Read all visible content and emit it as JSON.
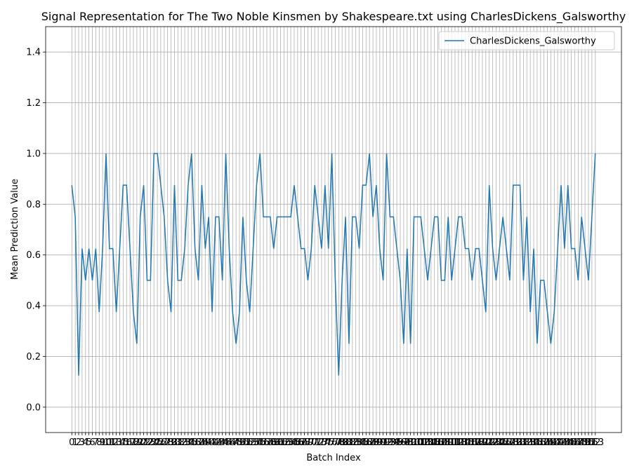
{
  "chart_data": {
    "type": "line",
    "title": "Signal Representation for The Two Noble Kinsmen by Shakespeare.txt using CharlesDickens_Galsworthy",
    "xlabel": "Batch Index",
    "ylabel": "Mean Prediction Value",
    "x": [
      0,
      1,
      2,
      3,
      4,
      5,
      6,
      7,
      8,
      9,
      10,
      11,
      12,
      13,
      14,
      15,
      16,
      17,
      18,
      19,
      20,
      21,
      22,
      23,
      24,
      25,
      26,
      27,
      28,
      29,
      30,
      31,
      32,
      33,
      34,
      35,
      36,
      37,
      38,
      39,
      40,
      41,
      42,
      43,
      44,
      45,
      46,
      47,
      48,
      49,
      50,
      51,
      52,
      53,
      54,
      55,
      56,
      57,
      58,
      59,
      60,
      61,
      62,
      63,
      64,
      65,
      66,
      67,
      68,
      69,
      70,
      71,
      72,
      73,
      74,
      75,
      76,
      77,
      78,
      79,
      80,
      81,
      82,
      83,
      84,
      85,
      86,
      87,
      88,
      89,
      90,
      91,
      92,
      93,
      94,
      95,
      96,
      97,
      98,
      99,
      100,
      101,
      102,
      103,
      104,
      105,
      106,
      107,
      108,
      109,
      110,
      111,
      112,
      113,
      114,
      115,
      116,
      117,
      118,
      119,
      120,
      121,
      122,
      123,
      124,
      125,
      126,
      127,
      128,
      129,
      130,
      131,
      132,
      133,
      134,
      135,
      136,
      137,
      138,
      139,
      140,
      141,
      142,
      143,
      144,
      145,
      146,
      147,
      148,
      149,
      150,
      151,
      152,
      153
    ],
    "series": [
      {
        "name": "CharlesDickens_Galsworthy",
        "color": "#1f77b4",
        "values": [
          0.875,
          0.75,
          0.125,
          0.625,
          0.5,
          0.625,
          0.5,
          0.625,
          0.375,
          0.625,
          1.0,
          0.625,
          0.625,
          0.375,
          0.625,
          0.875,
          0.875,
          0.625,
          0.375,
          0.25,
          0.75,
          0.875,
          0.5,
          0.5,
          1.0,
          1.0,
          0.875,
          0.75,
          0.5,
          0.375,
          0.875,
          0.5,
          0.5,
          0.625,
          0.875,
          1.0,
          0.625,
          0.5,
          0.875,
          0.625,
          0.75,
          0.375,
          0.75,
          0.75,
          0.5,
          1.0,
          0.625,
          0.375,
          0.25,
          0.375,
          0.75,
          0.5,
          0.375,
          0.625,
          0.875,
          1.0,
          0.75,
          0.75,
          0.75,
          0.625,
          0.75,
          0.75,
          0.75,
          0.75,
          0.75,
          0.875,
          0.75,
          0.625,
          0.625,
          0.5,
          0.625,
          0.875,
          0.75,
          0.625,
          0.875,
          0.625,
          1.0,
          0.5,
          0.125,
          0.5,
          0.75,
          0.25,
          0.75,
          0.75,
          0.625,
          0.875,
          0.875,
          1.0,
          0.75,
          0.875,
          0.625,
          0.5,
          1.0,
          0.75,
          0.75,
          0.625,
          0.5,
          0.25,
          0.625,
          0.25,
          0.75,
          0.75,
          0.75,
          0.625,
          0.5,
          0.625,
          0.75,
          0.75,
          0.5,
          0.5,
          0.75,
          0.5,
          0.625,
          0.75,
          0.75,
          0.625,
          0.625,
          0.5,
          0.625,
          0.625,
          0.5,
          0.375,
          0.875,
          0.625,
          0.5,
          0.625,
          0.75,
          0.625,
          0.5,
          0.875,
          0.875,
          0.875,
          0.5,
          0.75,
          0.375,
          0.625,
          0.25,
          0.5,
          0.5,
          0.375,
          0.25,
          0.375,
          0.625,
          0.875,
          0.625,
          0.875,
          0.625,
          0.625,
          0.5,
          0.75,
          0.625,
          0.5,
          0.75,
          1.0
        ]
      }
    ],
    "xticks": [
      0,
      1,
      2,
      3,
      4,
      5,
      6,
      7,
      8,
      9,
      10,
      11,
      12,
      13,
      14,
      15,
      16,
      17,
      18,
      19,
      20,
      21,
      22,
      23,
      24,
      25,
      26,
      27,
      28,
      29,
      30,
      31,
      32,
      33,
      34,
      35,
      36,
      37,
      38,
      39,
      40,
      41,
      42,
      43,
      44,
      45,
      46,
      47,
      48,
      49,
      50,
      51,
      52,
      53,
      54,
      55,
      56,
      57,
      58,
      59,
      60,
      61,
      62,
      63,
      64,
      65,
      66,
      67,
      68,
      69,
      70,
      71,
      72,
      73,
      74,
      75,
      76,
      77,
      78,
      79,
      80,
      81,
      82,
      83,
      84,
      85,
      86,
      87,
      88,
      89,
      90,
      91,
      92,
      93,
      94,
      95,
      96,
      97,
      98,
      99,
      100,
      101,
      102,
      103,
      104,
      105,
      106,
      107,
      108,
      109,
      110,
      111,
      112,
      113,
      114,
      115,
      116,
      117,
      118,
      119,
      120,
      121,
      122,
      123,
      124,
      125,
      126,
      127,
      128,
      129,
      130,
      131,
      132,
      133,
      134,
      135,
      136,
      137,
      138,
      139,
      140,
      141,
      142,
      143,
      144,
      145,
      146,
      147,
      148,
      149,
      150,
      151,
      152,
      153
    ],
    "xlim": [
      -7.65,
      160.65
    ],
    "ylim": [
      -0.1,
      1.5
    ],
    "yticks": [
      {
        "value": 0,
        "label": "0.0"
      },
      0.2,
      0.4,
      0.6,
      0.8,
      {
        "value": 1,
        "label": "1.0"
      },
      1.2,
      1.4
    ],
    "grid": true,
    "legend": "upper right"
  }
}
